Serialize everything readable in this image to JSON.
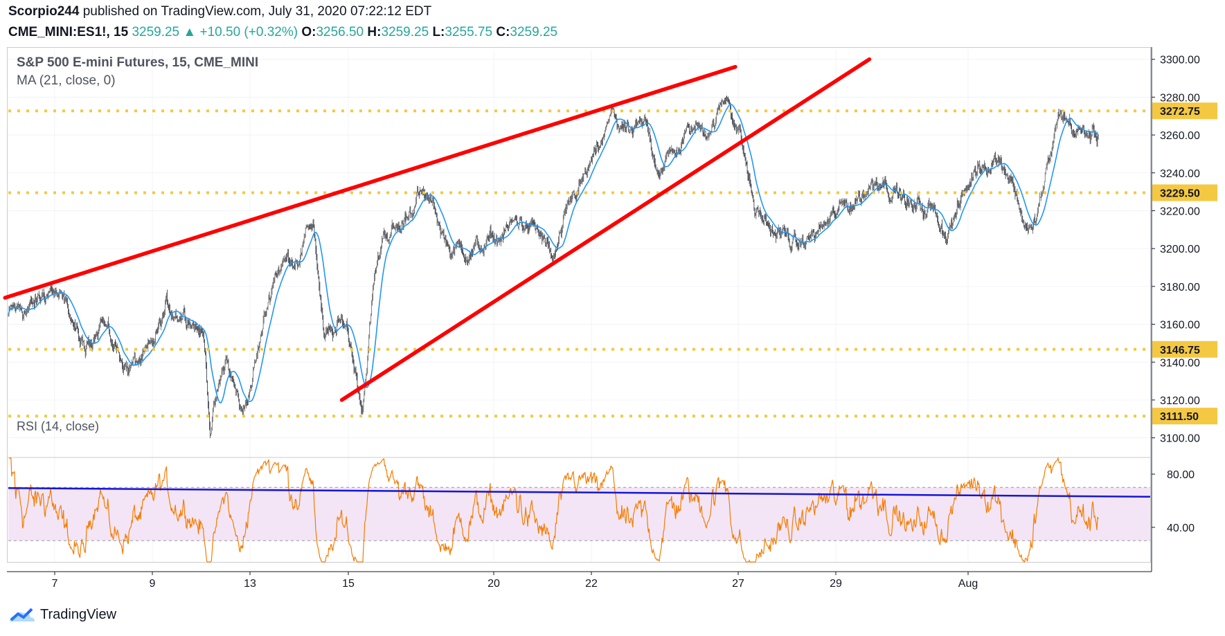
{
  "header": {
    "author": "Scorpio244",
    "published_text": "published on TradingView.com, July 31, 2020 07:22:12 EDT",
    "symbol": "CME_MINI:ES1!, 15",
    "last": "3259.25",
    "change": "+10.50 (+0.32%)",
    "o_label": "O:",
    "o_value": "3256.50",
    "h_label": "H:",
    "h_value": "3259.25",
    "l_label": "L:",
    "l_value": "3255.75",
    "c_label": "C:",
    "c_value": "3259.25"
  },
  "footer": {
    "brand": "TradingView"
  },
  "colors": {
    "candle_up": "#26a69a",
    "candle_down": "#ef5350",
    "candle_line": "#5b5b5b",
    "ma": "#2196f3",
    "trendline": "#ff0000",
    "level": "#f5c842",
    "rsi_line": "#f57c00",
    "rsi_band": "#f3e5f5",
    "rsi_trend": "#1515d6",
    "grid": "#f0f3fa",
    "axis": "#131722"
  },
  "chart_data": [
    {
      "type": "candlestick",
      "title": "S&P 500 E-mini Futures, 15, CME_MINI",
      "indicator_label": "MA (21, close, 0)",
      "x_ticks": [
        "7",
        "9",
        "13",
        "15",
        "20",
        "22",
        "27",
        "29",
        "Aug"
      ],
      "y_ticks": [
        "3100.00",
        "3120.00",
        "3140.00",
        "3160.00",
        "3180.00",
        "3200.00",
        "3220.00",
        "3240.00",
        "3260.00",
        "3280.00",
        "3300.00"
      ],
      "ylim": [
        3090,
        3305
      ],
      "price_path": [
        [
          0,
          3165
        ],
        [
          0.025,
          3170
        ],
        [
          0.04,
          3180
        ],
        [
          0.06,
          3160
        ],
        [
          0.07,
          3142
        ],
        [
          0.085,
          3168
        ],
        [
          0.095,
          3150
        ],
        [
          0.11,
          3138
        ],
        [
          0.13,
          3142
        ],
        [
          0.145,
          3167
        ],
        [
          0.165,
          3168
        ],
        [
          0.175,
          3160
        ],
        [
          0.18,
          3150
        ],
        [
          0.185,
          3108
        ],
        [
          0.2,
          3140
        ],
        [
          0.215,
          3112
        ],
        [
          0.23,
          3148
        ],
        [
          0.245,
          3190
        ],
        [
          0.265,
          3198
        ],
        [
          0.28,
          3215
        ],
        [
          0.29,
          3150
        ],
        [
          0.31,
          3160
        ],
        [
          0.325,
          3118
        ],
        [
          0.335,
          3180
        ],
        [
          0.345,
          3210
        ],
        [
          0.36,
          3210
        ],
        [
          0.375,
          3230
        ],
        [
          0.39,
          3220
        ],
        [
          0.405,
          3200
        ],
        [
          0.43,
          3200
        ],
        [
          0.45,
          3205
        ],
        [
          0.47,
          3215
        ],
        [
          0.49,
          3205
        ],
        [
          0.5,
          3192
        ],
        [
          0.52,
          3228
        ],
        [
          0.54,
          3248
        ],
        [
          0.555,
          3270
        ],
        [
          0.57,
          3258
        ],
        [
          0.585,
          3262
        ],
        [
          0.595,
          3245
        ],
        [
          0.61,
          3250
        ],
        [
          0.625,
          3262
        ],
        [
          0.645,
          3266
        ],
        [
          0.66,
          3280
        ],
        [
          0.67,
          3265
        ],
        [
          0.675,
          3250
        ],
        [
          0.685,
          3220
        ],
        [
          0.7,
          3210
        ],
        [
          0.715,
          3205
        ],
        [
          0.725,
          3200
        ],
        [
          0.745,
          3210
        ],
        [
          0.765,
          3220
        ],
        [
          0.785,
          3230
        ],
        [
          0.8,
          3240
        ],
        [
          0.815,
          3232
        ],
        [
          0.83,
          3220
        ],
        [
          0.845,
          3222
        ],
        [
          0.86,
          3210
        ],
        [
          0.875,
          3225
        ],
        [
          0.89,
          3245
        ],
        [
          0.905,
          3250
        ],
        [
          0.92,
          3240
        ],
        [
          0.93,
          3218
        ],
        [
          0.94,
          3208
        ],
        [
          0.955,
          3245
        ],
        [
          0.965,
          3272
        ],
        [
          0.98,
          3262
        ],
        [
          1.0,
          3259
        ]
      ],
      "trendlines": [
        {
          "from": [
            -0.003,
            3174
          ],
          "to": [
            0.667,
            3296
          ]
        },
        {
          "from": [
            0.306,
            3120
          ],
          "to": [
            0.79,
            3300
          ]
        }
      ],
      "levels": [
        {
          "value": 3272.75,
          "label": "3272.75"
        },
        {
          "value": 3229.5,
          "label": "3229.50"
        },
        {
          "value": 3146.75,
          "label": "3146.75"
        },
        {
          "value": 3111.5,
          "label": "3111.50"
        }
      ]
    },
    {
      "type": "line",
      "title": "RSI (14, close)",
      "y_ticks": [
        "40.00",
        "80.00"
      ],
      "ylim": [
        14,
        92
      ],
      "band": [
        30,
        70
      ],
      "trend": {
        "from": [
          0,
          69.5
        ],
        "to": [
          1.07,
          63
        ]
      }
    }
  ]
}
